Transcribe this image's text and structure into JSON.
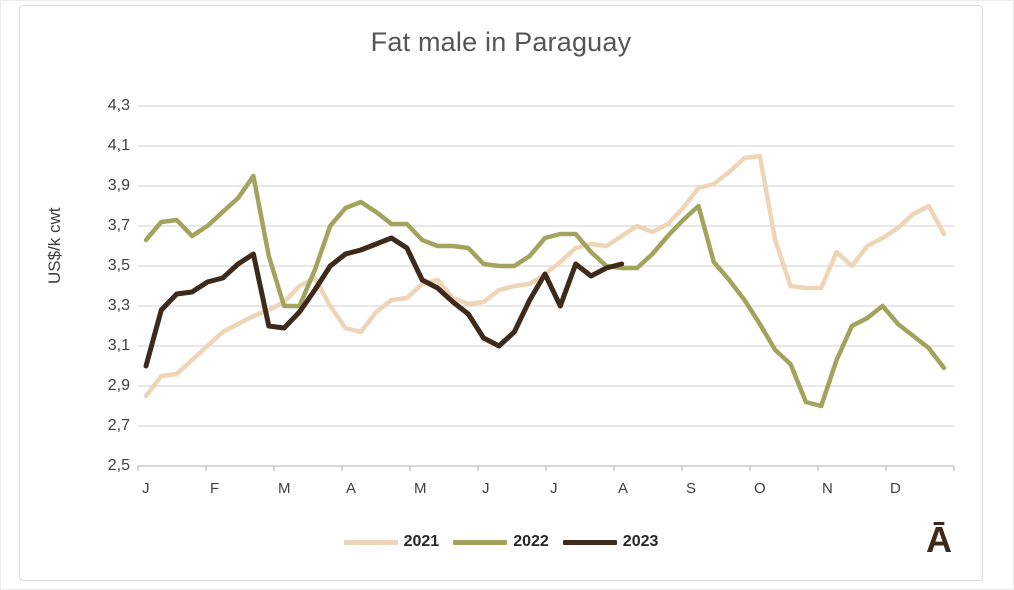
{
  "chart_data": {
    "type": "line",
    "title": "Fat male in Paraguay",
    "xlabel": "",
    "ylabel": "US$/k cwt",
    "grid": true,
    "legend_position": "bottom-center",
    "x_axis": {
      "tick_labels": [
        "J",
        "F",
        "M",
        "A",
        "M",
        "J",
        "J",
        "A",
        "S",
        "O",
        "N",
        "D"
      ],
      "note": "months, weekly data points"
    },
    "y_axis": {
      "min": 2.5,
      "max": 4.3,
      "tick_step": 0.2,
      "tick_labels_top_to_bottom": [
        "4,3",
        "4,1",
        "3,9",
        "3,7",
        "3,5",
        "3,3",
        "3,1",
        "2,9",
        "2,7",
        "2,5"
      ]
    },
    "series": [
      {
        "name": "2021",
        "color": "#eed5b7",
        "values": [
          2.85,
          2.95,
          2.96,
          3.03,
          3.1,
          3.17,
          3.21,
          3.25,
          3.28,
          3.32,
          3.4,
          3.44,
          3.3,
          3.19,
          3.17,
          3.27,
          3.33,
          3.34,
          3.41,
          3.43,
          3.34,
          3.31,
          3.32,
          3.38,
          3.4,
          3.41,
          3.46,
          3.52,
          3.59,
          3.61,
          3.6,
          3.65,
          3.7,
          3.67,
          3.71,
          3.79,
          3.89,
          3.91,
          3.97,
          4.04,
          4.05,
          3.63,
          3.4,
          3.39,
          3.39,
          3.57,
          3.5,
          3.6,
          3.64,
          3.69,
          3.76,
          3.8,
          3.66
        ]
      },
      {
        "name": "2022",
        "color": "#a2a45e",
        "values": [
          3.63,
          3.72,
          3.73,
          3.65,
          3.7,
          3.77,
          3.84,
          3.95,
          3.55,
          3.3,
          3.3,
          3.48,
          3.7,
          3.79,
          3.82,
          3.77,
          3.71,
          3.71,
          3.63,
          3.6,
          3.6,
          3.59,
          3.51,
          3.5,
          3.5,
          3.55,
          3.64,
          3.66,
          3.66,
          3.57,
          3.5,
          3.49,
          3.49,
          3.56,
          3.65,
          3.73,
          3.8,
          3.52,
          3.43,
          3.33,
          3.21,
          3.08,
          3.01,
          2.82,
          2.8,
          3.03,
          3.2,
          3.24,
          3.3,
          3.21,
          3.15,
          3.09,
          2.99
        ]
      },
      {
        "name": "2023",
        "color": "#3e2a1a",
        "values": [
          3.0,
          3.28,
          3.36,
          3.37,
          3.42,
          3.44,
          3.51,
          3.56,
          3.2,
          3.19,
          3.27,
          3.38,
          3.5,
          3.56,
          3.58,
          3.61,
          3.64,
          3.59,
          3.43,
          3.39,
          3.32,
          3.26,
          3.14,
          3.1,
          3.17,
          3.33,
          3.46,
          3.3,
          3.51,
          3.45,
          3.49,
          3.51
        ]
      }
    ],
    "colors": {
      "gridline": "#d9d9d9",
      "axis_line": "#bfbfbf",
      "title_text": "#555555",
      "tick_text": "#3f3f3f"
    }
  },
  "branding": {
    "mark": "Ā"
  }
}
